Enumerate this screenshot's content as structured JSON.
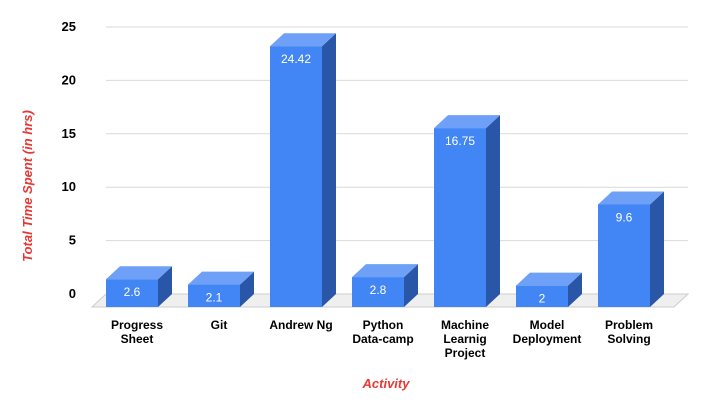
{
  "chart_data": {
    "type": "bar",
    "style": "3d-column",
    "categories": [
      [
        "Progress",
        "Sheet"
      ],
      [
        "Git"
      ],
      [
        "Andrew Ng"
      ],
      [
        "Python",
        "Data-camp"
      ],
      [
        "Machine",
        "Learnig",
        "Project"
      ],
      [
        "Model",
        "Deployment"
      ],
      [
        "Problem",
        "Solving"
      ]
    ],
    "values": [
      2.6,
      2.1,
      24.42,
      2.8,
      16.75,
      2,
      9.6
    ],
    "data_labels": [
      "2.6",
      "2.1",
      "24.42",
      "2.8",
      "16.75",
      "2",
      "9.6"
    ],
    "xlabel": "Activity",
    "ylabel": "Total Time Spent  (in hrs)",
    "ylim": [
      0,
      25
    ],
    "yticks": [
      0,
      5,
      10,
      15,
      20,
      25
    ],
    "grid": true,
    "legend": "none",
    "colors": {
      "bar_front": "#4285f4",
      "bar_side": "#2a56a8",
      "bar_top": "#6fa0f7",
      "axis_title": "#e53935",
      "grid": "#d9d9d9",
      "floor": "#cccccc"
    }
  }
}
